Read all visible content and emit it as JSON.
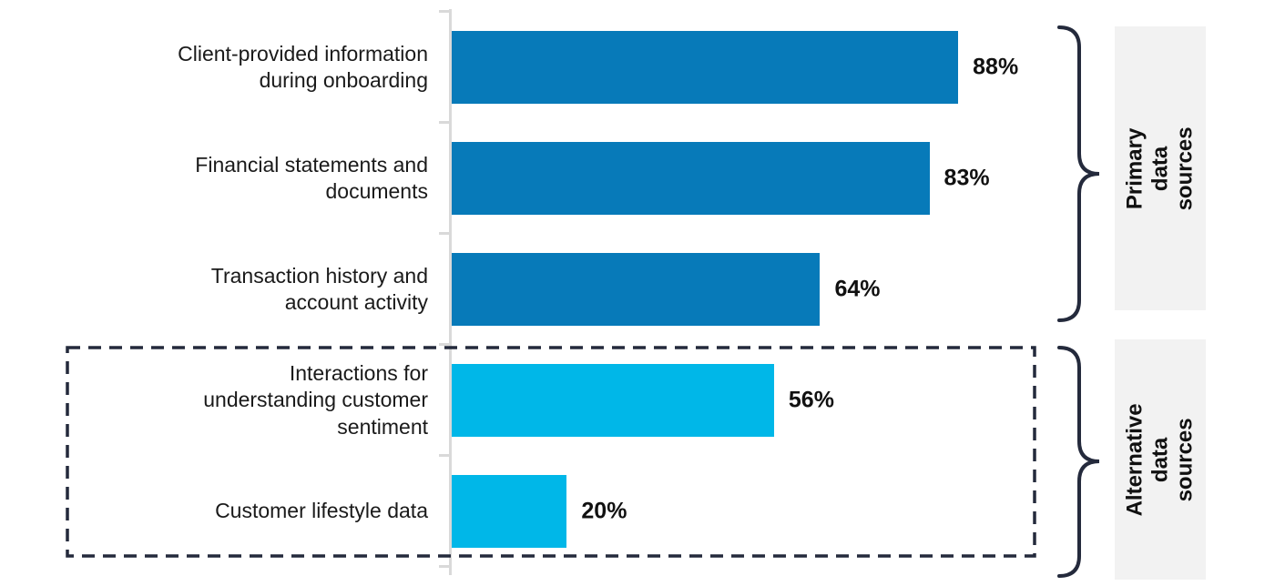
{
  "chart_data": {
    "type": "bar",
    "orientation": "horizontal",
    "title": "",
    "xlabel": "",
    "ylabel": "",
    "xlim": [
      0,
      100
    ],
    "grid": false,
    "legend": "none",
    "categories": [
      "Client-provided information\nduring onboarding",
      "Financial statements and\ndocuments",
      "Transaction history and\naccount activity",
      "Interactions for\nunderstanding customer\nsentiment",
      "Customer lifestyle data"
    ],
    "values": [
      88,
      83,
      64,
      56,
      20
    ],
    "value_labels": [
      "88%",
      "83%",
      "64%",
      "56%",
      "20%"
    ],
    "bar_colors": [
      "#077ab9",
      "#077ab9",
      "#077ab9",
      "#00b7e8",
      "#00b7e8"
    ],
    "groups": [
      {
        "label": "Primary data\nsources",
        "category_indices": [
          0,
          1,
          2
        ],
        "bar_color": "#077ab9",
        "dashed_outline": false
      },
      {
        "label": "Alternative data\nsources",
        "category_indices": [
          3,
          4
        ],
        "bar_color": "#00b7e8",
        "dashed_outline": true
      }
    ]
  },
  "colors": {
    "primary_bar": "#077ab9",
    "alternative_bar": "#00b7e8",
    "annotation": "#242a3c",
    "axis": "#d9d9d9",
    "group_label_background": "#f2f2f2",
    "text": "#1a1a1a"
  }
}
